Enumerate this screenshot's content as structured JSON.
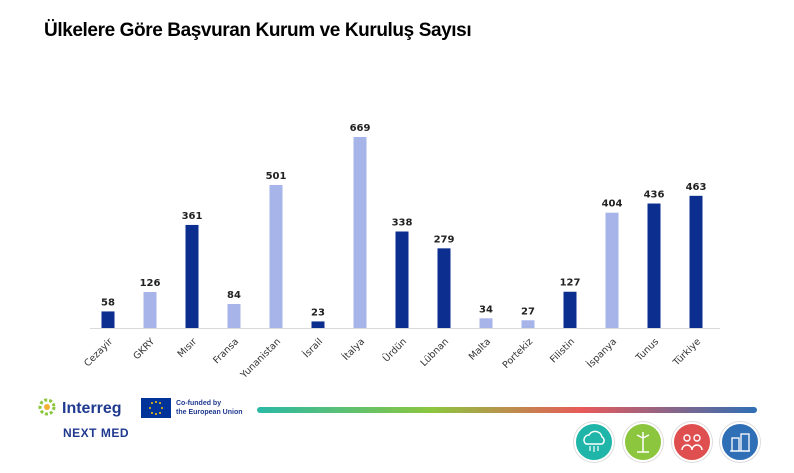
{
  "title": "Ülkelere Göre Başvuran Kurum ve Kuruluş Sayısı",
  "chart_data": {
    "type": "bar",
    "categories": [
      "Cezayir",
      "GKRY",
      "Mısır",
      "Fransa",
      "Yunanistan",
      "İsrail",
      "İtalya",
      "Ürdün",
      "Lübnan",
      "Malta",
      "Portekiz",
      "Filistin",
      "İspanya",
      "Tunus",
      "Türkiye"
    ],
    "values": [
      58,
      126,
      361,
      84,
      501,
      23,
      669,
      338,
      279,
      34,
      27,
      127,
      404,
      436,
      463
    ],
    "bar_colors": [
      "#0b2e8f",
      "#a7b4ea",
      "#0b2e8f",
      "#a7b4ea",
      "#a7b4ea",
      "#0b2e8f",
      "#a7b4ea",
      "#0b2e8f",
      "#0b2e8f",
      "#a7b4ea",
      "#a7b4ea",
      "#0b2e8f",
      "#a7b4ea",
      "#0b2e8f",
      "#0b2e8f"
    ],
    "xlabel": "",
    "ylabel": "",
    "grid": false,
    "ylim": [
      0,
      700
    ]
  },
  "footer": {
    "brand": "Interreg",
    "program": "NEXT MED",
    "eu_text_line1": "Co-funded by",
    "eu_text_line2": "the European Union",
    "icons": [
      {
        "name": "cloud-network-icon",
        "color": "#1fb5a8"
      },
      {
        "name": "wind-energy-icon",
        "color": "#8cc63f"
      },
      {
        "name": "people-group-icon",
        "color": "#e04f4f"
      },
      {
        "name": "city-buildings-icon",
        "color": "#2f6fb5"
      }
    ]
  }
}
